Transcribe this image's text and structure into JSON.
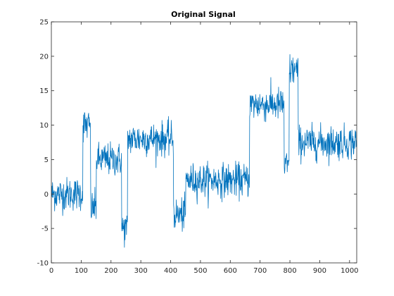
{
  "chart_data": {
    "type": "line",
    "title": "Original Signal",
    "xlabel": "",
    "ylabel": "",
    "xlim": [
      0,
      1024
    ],
    "ylim": [
      -10,
      25
    ],
    "xticks": [
      0,
      100,
      200,
      300,
      400,
      500,
      600,
      700,
      800,
      900,
      1000
    ],
    "yticks": [
      -10,
      -5,
      0,
      5,
      10,
      15,
      20,
      25
    ],
    "grid": false,
    "box": true,
    "series": [
      {
        "color": "#0072bd",
        "segments": [
          {
            "x": [
              1,
              105
            ],
            "level": 0
          },
          {
            "x": [
              106,
              131
            ],
            "level": 10
          },
          {
            "x": [
              132,
              150
            ],
            "level": -2
          },
          {
            "x": [
              151,
              235
            ],
            "level": 5
          },
          {
            "x": [
              236,
              255
            ],
            "level": -5
          },
          {
            "x": [
              256,
              409
            ],
            "level": 8
          },
          {
            "x": [
              410,
              450
            ],
            "level": -3
          },
          {
            "x": [
              451,
              664
            ],
            "level": 2
          },
          {
            "x": [
              665,
              780
            ],
            "level": 13
          },
          {
            "x": [
              781,
              797
            ],
            "level": 4
          },
          {
            "x": [
              798,
              827
            ],
            "level": 18
          },
          {
            "x": [
              828,
              1024
            ],
            "level": 7.5
          }
        ],
        "noise_amplitude": 1.2
      }
    ]
  }
}
